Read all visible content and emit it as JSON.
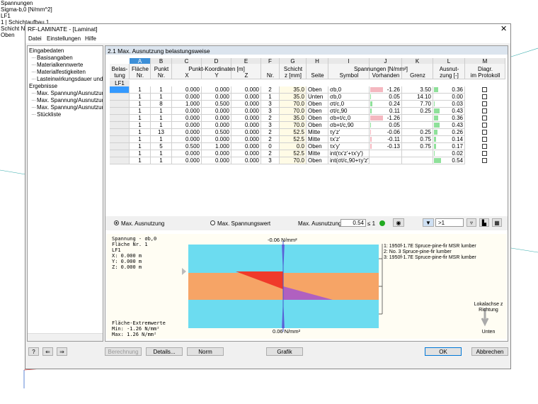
{
  "background": {
    "lines": [
      "Spannungen",
      "Sigma-b,0 [N/mm^2]",
      "LF1",
      "1 | Schichtaufbau 1",
      "Schicht N",
      "Oben"
    ]
  },
  "window": {
    "title": "RF-LAMINATE - [Laminat]",
    "menu": [
      "Datei",
      "Einstellungen",
      "Hilfe"
    ]
  },
  "tree": {
    "groups": [
      {
        "label": "Eingabedaten",
        "items": [
          "Basisangaben",
          "Materialkennwerte",
          "Materialfestigkeiten",
          "Lasteinwirkungsdauer und Nutz"
        ]
      },
      {
        "label": "Ergebnisse",
        "items": [
          "Max. Spannung/Ausnutzung be",
          "Max. Spannung/Ausnutzung fl",
          "Max. Spannung/Ausnutzung sc",
          "Stückliste"
        ]
      }
    ]
  },
  "panel": {
    "title": "2.1 Max. Ausnutzung belastungsweise"
  },
  "table": {
    "groups": [
      "Punkt-Koordinaten [m]",
      "Spannungen [N/mm²]"
    ],
    "columns": [
      {
        "top": "Belas-",
        "bottom": "tung"
      },
      {
        "letter": "A",
        "top": "Fläche",
        "bottom": "Nr."
      },
      {
        "letter": "B",
        "top": "Punkt",
        "bottom": "Nr."
      },
      {
        "letter": "C",
        "bottom": "X"
      },
      {
        "letter": "D",
        "bottom": "Y"
      },
      {
        "letter": "E",
        "bottom": "Z"
      },
      {
        "letter": "F",
        "bottom": "Nr."
      },
      {
        "letter": "G",
        "top": "Schicht",
        "bottom": "z [mm]"
      },
      {
        "letter": "H",
        "bottom": "Seite"
      },
      {
        "letter": "I",
        "bottom": "Symbol"
      },
      {
        "letter": "J",
        "bottom": "Vorhanden"
      },
      {
        "letter": "K",
        "bottom": "Grenz"
      },
      {
        "letter": "L",
        "top": "Ausnut-",
        "bottom": "zung [-]"
      },
      {
        "letter": "M",
        "top": "Diagr.",
        "bottom": "im Protokoll"
      }
    ],
    "load_case": "LF1",
    "rows": [
      {
        "flaeche": "1",
        "punkt": "1",
        "x": "0.000",
        "y": "0.000",
        "z": "0.000",
        "nr": "2",
        "zmm": "35.0",
        "seite": "Oben",
        "symbol": "σb,0",
        "vorhanden": "-1.26",
        "grenz": "3.50",
        "ausnutzung": "0.36"
      },
      {
        "flaeche": "1",
        "punkt": "1",
        "x": "0.000",
        "y": "0.000",
        "z": "0.000",
        "nr": "1",
        "zmm": "35.0",
        "seite": "Unten",
        "symbol": "σb,0",
        "vorhanden": "0.05",
        "grenz": "14.10",
        "ausnutzung": "0.00"
      },
      {
        "flaeche": "1",
        "punkt": "8",
        "x": "1.000",
        "y": "0.500",
        "z": "0.000",
        "nr": "3",
        "zmm": "70.0",
        "seite": "Oben",
        "symbol": "σt/c,0",
        "vorhanden": "0.24",
        "grenz": "7.70",
        "ausnutzung": "0.03"
      },
      {
        "flaeche": "1",
        "punkt": "1",
        "x": "0.000",
        "y": "0.000",
        "z": "0.000",
        "nr": "3",
        "zmm": "70.0",
        "seite": "Oben",
        "symbol": "σt/c,90",
        "vorhanden": "0.11",
        "grenz": "0.25",
        "ausnutzung": "0.43"
      },
      {
        "flaeche": "1",
        "punkt": "1",
        "x": "0.000",
        "y": "0.000",
        "z": "0.000",
        "nr": "2",
        "zmm": "35.0",
        "seite": "Oben",
        "symbol": "σb+t/c,0",
        "vorhanden": "-1.26",
        "ausnutzung": "0.36"
      },
      {
        "flaeche": "1",
        "punkt": "1",
        "x": "0.000",
        "y": "0.000",
        "z": "0.000",
        "nr": "3",
        "zmm": "70.0",
        "seite": "Oben",
        "symbol": "σb+t/c,90",
        "vorhanden": "0.05",
        "ausnutzung": "0.43"
      },
      {
        "flaeche": "1",
        "punkt": "13",
        "x": "0.000",
        "y": "0.500",
        "z": "0.000",
        "nr": "2",
        "zmm": "52.5",
        "seite": "Mitte",
        "symbol": "τy'z'",
        "vorhanden": "-0.06",
        "grenz": "0.25",
        "ausnutzung": "0.26"
      },
      {
        "flaeche": "1",
        "punkt": "1",
        "x": "0.000",
        "y": "0.000",
        "z": "0.000",
        "nr": "2",
        "zmm": "52.5",
        "seite": "Mitte",
        "symbol": "τx'z'",
        "vorhanden": "-0.11",
        "grenz": "0.75",
        "ausnutzung": "0.14"
      },
      {
        "flaeche": "1",
        "punkt": "5",
        "x": "0.500",
        "y": "1.000",
        "z": "0.000",
        "nr": "0",
        "zmm": "0.0",
        "seite": "Oben",
        "symbol": "τx'y'",
        "vorhanden": "-0.13",
        "grenz": "0.75",
        "ausnutzung": "0.17"
      },
      {
        "flaeche": "1",
        "punkt": "1",
        "x": "0.000",
        "y": "0.000",
        "z": "0.000",
        "nr": "2",
        "zmm": "52.5",
        "seite": "Mitte",
        "symbol": "int(τx'z'+τx'y')",
        "ausnutzung": "0.02"
      },
      {
        "flaeche": "1",
        "punkt": "1",
        "x": "0.000",
        "y": "0.000",
        "z": "0.000",
        "nr": "3",
        "zmm": "70.0",
        "seite": "Oben",
        "symbol": "int(σt/c,90+τy'z')",
        "ausnutzung": "0.54"
      }
    ]
  },
  "controls": {
    "radio_1": "Max. Ausnutzung",
    "radio_2": "Max. Spannungswert",
    "max_label": "Max. Ausnutzung:",
    "max_value": "0.54",
    "limit": "≤ 1",
    "filter": ">1"
  },
  "graphic": {
    "info": [
      "Spannung - σb,0",
      "Fläche Nr. 1",
      "LF1",
      "X: 0.000 m",
      "Y: 0.000 m",
      "Z: 0.000 m"
    ],
    "extremes": [
      "Fläche-Extremwerte",
      "Min: -1.26 N/mm²",
      "Max: 1.26 N/mm²"
    ],
    "top_value": "-0.06 N/mm²",
    "bottom_value": "0.06 N/mm²",
    "layers": [
      "1: 1950f-1.7E Spruce-pine-fir MSR lumber",
      "2: No. 3 Spruce-pine-fir lumber",
      "3: 1950f-1.7E Spruce-pine-fir MSR lumber"
    ],
    "axis_note": [
      "Lokalachse z",
      "Richtung"
    ],
    "axis_dir": "Unten"
  },
  "buttons": {
    "berechnung": "Berechnung",
    "details": "Details...",
    "norm": "Norm",
    "grafik": "Grafik",
    "ok": "OK",
    "abbrechen": "Abbrechen"
  }
}
